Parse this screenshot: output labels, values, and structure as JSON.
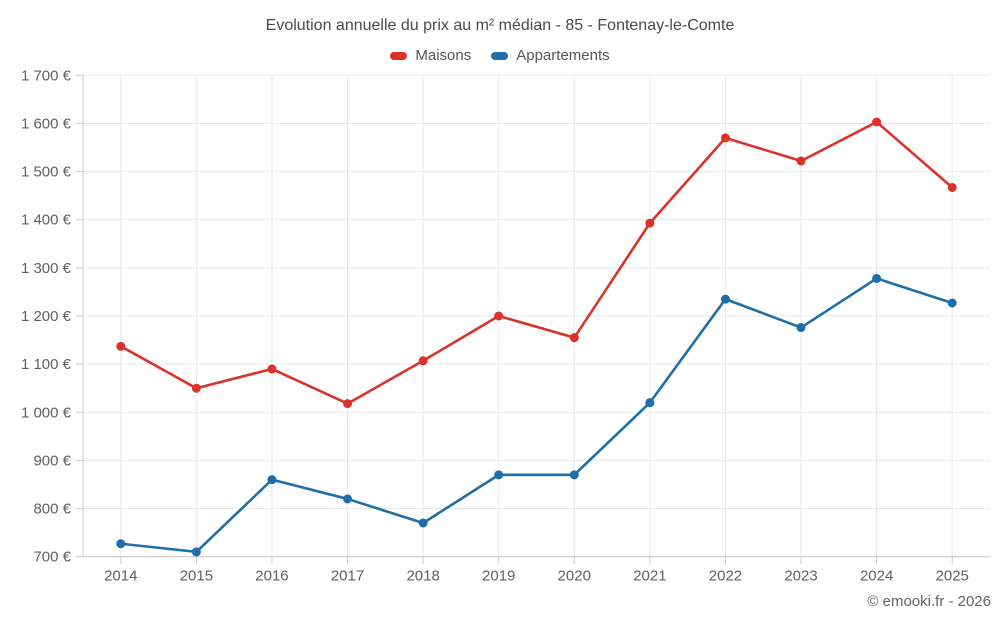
{
  "chart_data": {
    "type": "line",
    "title": "Evolution annuelle du prix au m² médian - 85 - Fontenay-le-Comte",
    "categories": [
      "2014",
      "2015",
      "2016",
      "2017",
      "2018",
      "2019",
      "2020",
      "2021",
      "2022",
      "2023",
      "2024",
      "2025"
    ],
    "series": [
      {
        "name": "Maisons",
        "color": "#d9332b",
        "values": [
          1137,
          1050,
          1090,
          1018,
          1107,
          1200,
          1155,
          1393,
          1570,
          1522,
          1603,
          1467
        ]
      },
      {
        "name": "Appartements",
        "color": "#1e6fa9",
        "values": [
          727,
          710,
          860,
          820,
          770,
          870,
          870,
          1020,
          1235,
          1176,
          1278,
          1227
        ]
      }
    ],
    "y_axis": {
      "min": 700,
      "max": 1700,
      "tick_step": 100,
      "ticks": [
        {
          "value": 700,
          "label": "700 €"
        },
        {
          "value": 800,
          "label": "800 €"
        },
        {
          "value": 900,
          "label": "900 €"
        },
        {
          "value": 1000,
          "label": "1 000 €"
        },
        {
          "value": 1100,
          "label": "1 100 €"
        },
        {
          "value": 1200,
          "label": "1 200 €"
        },
        {
          "value": 1300,
          "label": "1 300 €"
        },
        {
          "value": 1400,
          "label": "1 400 €"
        },
        {
          "value": 1500,
          "label": "1 500 €"
        },
        {
          "value": 1600,
          "label": "1 600 €"
        },
        {
          "value": 1700,
          "label": "1 700 €"
        }
      ]
    },
    "unit": "€",
    "grid": true,
    "legend_position": "top"
  },
  "footer": {
    "copyright": "© emooki.fr - 2026"
  },
  "theme": {
    "background": "#ffffff",
    "title_color": "#4a4a4a",
    "legend_text_color": "#565656",
    "tick_text_color": "#616161",
    "grid_color": "#e9e9e9",
    "axis_color": "#cbcbcb",
    "footer_color": "#636363"
  }
}
